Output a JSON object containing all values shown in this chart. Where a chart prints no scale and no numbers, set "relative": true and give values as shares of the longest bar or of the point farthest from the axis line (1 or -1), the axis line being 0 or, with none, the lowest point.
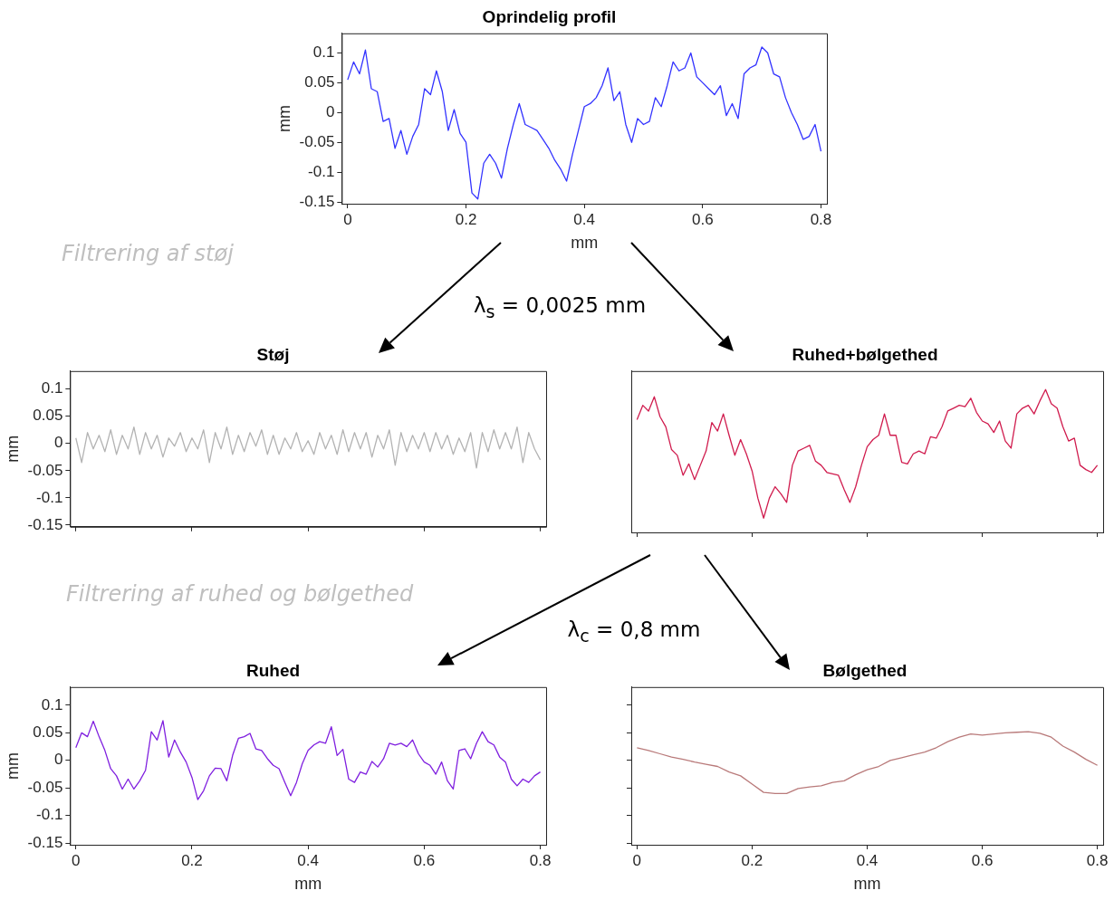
{
  "chart_data": [
    {
      "type": "line",
      "title": "Oprindelig profil",
      "xlabel": "mm",
      "ylabel": "mm",
      "color": "#3333ff",
      "xlim": [
        -0.01,
        0.81
      ],
      "xticks": [
        0,
        0.2,
        0.4,
        0.6,
        0.8
      ],
      "ylim": [
        -0.153,
        0.133
      ],
      "yticks": [
        -0.15,
        -0.1,
        -0.05,
        0,
        0.05,
        0.1
      ],
      "annotations": [
        "Filtrering af støj",
        "λ$_{s}$ = 0,0025 mm"
      ],
      "x": [
        0,
        0.01,
        0.02,
        0.03,
        0.04,
        0.05,
        0.06,
        0.07,
        0.08,
        0.09,
        0.1,
        0.11,
        0.12,
        0.13,
        0.14,
        0.15,
        0.16,
        0.17,
        0.18,
        0.19,
        0.2,
        0.21,
        0.22,
        0.23,
        0.24,
        0.25,
        0.26,
        0.27,
        0.28,
        0.29,
        0.3,
        0.31,
        0.32,
        0.33,
        0.34,
        0.35,
        0.36,
        0.37,
        0.38,
        0.39,
        0.4,
        0.41,
        0.42,
        0.43,
        0.44,
        0.45,
        0.46,
        0.47,
        0.48,
        0.49,
        0.5,
        0.51,
        0.52,
        0.53,
        0.54,
        0.55,
        0.56,
        0.57,
        0.58,
        0.59,
        0.6,
        0.61,
        0.62,
        0.63,
        0.64,
        0.65,
        0.66,
        0.67,
        0.68,
        0.69,
        0.7,
        0.71,
        0.72,
        0.73,
        0.74,
        0.75,
        0.76,
        0.77,
        0.78,
        0.79,
        0.8
      ],
      "values": [
        0.055,
        0.085,
        0.065,
        0.105,
        0.04,
        0.035,
        -0.015,
        -0.01,
        -0.06,
        -0.03,
        -0.07,
        -0.04,
        -0.02,
        0.04,
        0.03,
        0.07,
        0.035,
        -0.03,
        0.005,
        -0.035,
        -0.05,
        -0.135,
        -0.145,
        -0.085,
        -0.07,
        -0.085,
        -0.11,
        -0.06,
        -0.02,
        0.015,
        -0.02,
        -0.025,
        -0.03,
        -0.045,
        -0.06,
        -0.08,
        -0.095,
        -0.115,
        -0.07,
        -0.03,
        0.01,
        0.015,
        0.025,
        0.045,
        0.075,
        0.02,
        0.035,
        -0.02,
        -0.05,
        -0.01,
        -0.02,
        -0.015,
        0.025,
        0.01,
        0.045,
        0.085,
        0.07,
        0.075,
        0.1,
        0.06,
        0.05,
        0.04,
        0.03,
        0.045,
        -0.005,
        0.015,
        -0.01,
        0.065,
        0.075,
        0.08,
        0.11,
        0.1,
        0.065,
        0.06,
        0.025,
        0,
        -0.02,
        -0.045,
        -0.04,
        -0.02,
        -0.065
      ]
    },
    {
      "type": "line",
      "title": "Støj",
      "ylabel": "mm",
      "color": "#b3b3b3",
      "tick_labels": "y",
      "xlim": [
        -0.01,
        0.81
      ],
      "xticks": [
        0,
        0.2,
        0.4,
        0.6,
        0.8
      ],
      "ylim": [
        -0.153,
        0.133
      ],
      "yticks": [
        -0.15,
        -0.1,
        -0.05,
        0,
        0.05,
        0.1
      ],
      "x": [
        0,
        0.01,
        0.02,
        0.03,
        0.04,
        0.05,
        0.06,
        0.07,
        0.08,
        0.09,
        0.1,
        0.11,
        0.12,
        0.13,
        0.14,
        0.15,
        0.16,
        0.17,
        0.18,
        0.19,
        0.2,
        0.21,
        0.22,
        0.23,
        0.24,
        0.25,
        0.26,
        0.27,
        0.28,
        0.29,
        0.3,
        0.31,
        0.32,
        0.33,
        0.34,
        0.35,
        0.36,
        0.37,
        0.38,
        0.39,
        0.4,
        0.41,
        0.42,
        0.43,
        0.44,
        0.45,
        0.46,
        0.47,
        0.48,
        0.49,
        0.5,
        0.51,
        0.52,
        0.53,
        0.54,
        0.55,
        0.56,
        0.57,
        0.58,
        0.59,
        0.6,
        0.61,
        0.62,
        0.63,
        0.64,
        0.65,
        0.66,
        0.67,
        0.68,
        0.69,
        0.7,
        0.71,
        0.72,
        0.73,
        0.74,
        0.75,
        0.76,
        0.77,
        0.78,
        0.79,
        0.8
      ],
      "values": [
        0.01,
        -0.035,
        0.02,
        -0.01,
        0.015,
        -0.015,
        0.025,
        -0.02,
        0.015,
        -0.01,
        0.03,
        -0.02,
        0.02,
        -0.01,
        0.015,
        -0.025,
        0.01,
        -0.005,
        0.02,
        -0.015,
        0.01,
        -0.01,
        0.025,
        -0.035,
        0.02,
        -0.01,
        0.03,
        -0.02,
        0.015,
        -0.015,
        0.02,
        -0.005,
        0.025,
        -0.02,
        0.015,
        -0.02,
        0.01,
        -0.01,
        0.02,
        -0.015,
        0.005,
        -0.02,
        0.02,
        -0.01,
        0.015,
        -0.02,
        0.025,
        -0.015,
        0.02,
        -0.01,
        0.02,
        -0.025,
        0.015,
        -0.01,
        0.025,
        -0.04,
        0.02,
        -0.015,
        0.015,
        -0.01,
        0.02,
        -0.015,
        0.02,
        -0.01,
        0.015,
        -0.02,
        0.01,
        -0.015,
        0.02,
        -0.045,
        0.02,
        -0.015,
        0.025,
        -0.01,
        0.02,
        -0.01,
        0.03,
        -0.035,
        0.02,
        -0.01,
        -0.03
      ]
    },
    {
      "type": "line",
      "title": "Ruhed+bølgethed",
      "color": "#d01c4e",
      "relative": true,
      "tick_labels": false,
      "xlim": [
        -0.01,
        0.81
      ],
      "xticks": [
        0,
        0.2,
        0.4,
        0.6,
        0.8
      ],
      "annotations": [
        "Filtrering af ruhed og bølgethed",
        "λ$_{c}$ = 0,8 mm"
      ],
      "x": [
        0,
        0.01,
        0.02,
        0.03,
        0.04,
        0.05,
        0.06,
        0.07,
        0.08,
        0.09,
        0.1,
        0.11,
        0.12,
        0.13,
        0.14,
        0.15,
        0.16,
        0.17,
        0.18,
        0.19,
        0.2,
        0.21,
        0.22,
        0.23,
        0.24,
        0.25,
        0.26,
        0.27,
        0.28,
        0.29,
        0.3,
        0.31,
        0.32,
        0.33,
        0.34,
        0.35,
        0.36,
        0.37,
        0.38,
        0.39,
        0.4,
        0.41,
        0.42,
        0.43,
        0.44,
        0.45,
        0.46,
        0.47,
        0.48,
        0.49,
        0.5,
        0.51,
        0.52,
        0.53,
        0.54,
        0.55,
        0.56,
        0.57,
        0.58,
        0.59,
        0.6,
        0.61,
        0.62,
        0.63,
        0.64,
        0.65,
        0.66,
        0.67,
        0.68,
        0.69,
        0.7,
        0.71,
        0.72,
        0.73,
        0.74,
        0.75,
        0.76,
        0.77,
        0.78,
        0.79,
        0.8
      ],
      "values": [
        0.79,
        0.89,
        0.85,
        0.95,
        0.81,
        0.74,
        0.58,
        0.54,
        0.4,
        0.48,
        0.37,
        0.47,
        0.57,
        0.77,
        0.71,
        0.83,
        0.68,
        0.54,
        0.65,
        0.55,
        0.43,
        0.24,
        0.1,
        0.24,
        0.32,
        0.27,
        0.21,
        0.47,
        0.57,
        0.59,
        0.61,
        0.5,
        0.47,
        0.42,
        0.41,
        0.4,
        0.3,
        0.21,
        0.32,
        0.47,
        0.6,
        0.65,
        0.68,
        0.83,
        0.68,
        0.68,
        0.49,
        0.48,
        0.55,
        0.57,
        0.55,
        0.67,
        0.66,
        0.74,
        0.85,
        0.87,
        0.89,
        0.88,
        0.94,
        0.84,
        0.78,
        0.76,
        0.7,
        0.78,
        0.64,
        0.59,
        0.83,
        0.87,
        0.89,
        0.83,
        0.92,
        1,
        0.9,
        0.87,
        0.74,
        0.64,
        0.66,
        0.47,
        0.44,
        0.42,
        0.47
      ]
    },
    {
      "type": "line",
      "title": "Ruhed",
      "xlabel": "mm",
      "ylabel": "mm",
      "color": "#7f1fdf",
      "xlim": [
        -0.01,
        0.81
      ],
      "xticks": [
        0,
        0.2,
        0.4,
        0.6,
        0.8
      ],
      "ylim": [
        -0.153,
        0.133
      ],
      "yticks": [
        -0.15,
        -0.1,
        -0.05,
        0,
        0.05,
        0.1
      ],
      "x": [
        0,
        0.01,
        0.02,
        0.03,
        0.04,
        0.05,
        0.06,
        0.07,
        0.08,
        0.09,
        0.1,
        0.11,
        0.12,
        0.13,
        0.14,
        0.15,
        0.16,
        0.17,
        0.18,
        0.19,
        0.2,
        0.21,
        0.22,
        0.23,
        0.24,
        0.25,
        0.26,
        0.27,
        0.28,
        0.29,
        0.3,
        0.31,
        0.32,
        0.33,
        0.34,
        0.35,
        0.36,
        0.37,
        0.38,
        0.39,
        0.4,
        0.41,
        0.42,
        0.43,
        0.44,
        0.45,
        0.46,
        0.47,
        0.48,
        0.49,
        0.5,
        0.51,
        0.52,
        0.53,
        0.54,
        0.55,
        0.56,
        0.57,
        0.58,
        0.59,
        0.6,
        0.61,
        0.62,
        0.63,
        0.64,
        0.65,
        0.66,
        0.67,
        0.68,
        0.69,
        0.7,
        0.71,
        0.72,
        0.73,
        0.74,
        0.75,
        0.76,
        0.77,
        0.78,
        0.79,
        0.8
      ],
      "values": [
        0.023,
        0.05,
        0.043,
        0.071,
        0.043,
        0.018,
        -0.015,
        -0.028,
        -0.052,
        -0.034,
        -0.052,
        -0.037,
        -0.018,
        0.052,
        0.037,
        0.072,
        0.006,
        0.037,
        0.015,
        -0.003,
        -0.031,
        -0.071,
        -0.055,
        -0.028,
        -0.014,
        -0.015,
        -0.037,
        0.009,
        0.04,
        0.043,
        0.049,
        0.021,
        0.018,
        0.003,
        -0.009,
        -0.015,
        -0.04,
        -0.064,
        -0.04,
        -0.006,
        0.018,
        0.028,
        0.034,
        0.031,
        0.061,
        0.009,
        0.02,
        -0.034,
        -0.04,
        -0.021,
        -0.025,
        -0.002,
        -0.012,
        0.003,
        0.031,
        0.028,
        0.031,
        0.025,
        0.037,
        0.012,
        -0.003,
        -0.009,
        -0.025,
        -0.003,
        -0.037,
        -0.052,
        0.018,
        0.021,
        0.003,
        0.031,
        0.052,
        0.034,
        0.028,
        0.006,
        -0.003,
        -0.034,
        -0.046,
        -0.034,
        -0.04,
        -0.028,
        -0.021
      ]
    },
    {
      "type": "line",
      "title": "Bølgethed",
      "xlabel": "mm",
      "color": "#b97a7a",
      "tick_labels": "x",
      "xlim": [
        -0.01,
        0.81
      ],
      "xticks": [
        0,
        0.2,
        0.4,
        0.6,
        0.8
      ],
      "ylim": [
        -0.153,
        0.133
      ],
      "yticks": [
        -0.15,
        -0.1,
        -0.05,
        0,
        0.05,
        0.1
      ],
      "x": [
        0,
        0.02,
        0.04,
        0.06,
        0.08,
        0.1,
        0.12,
        0.14,
        0.16,
        0.18,
        0.2,
        0.22,
        0.24,
        0.26,
        0.28,
        0.3,
        0.32,
        0.34,
        0.36,
        0.38,
        0.4,
        0.42,
        0.44,
        0.46,
        0.48,
        0.5,
        0.52,
        0.54,
        0.56,
        0.58,
        0.6,
        0.62,
        0.64,
        0.66,
        0.68,
        0.7,
        0.72,
        0.74,
        0.76,
        0.78,
        0.8
      ],
      "values": [
        0.023,
        0.018,
        0.012,
        0.006,
        0.002,
        -0.003,
        -0.007,
        -0.011,
        -0.021,
        -0.028,
        -0.043,
        -0.058,
        -0.06,
        -0.06,
        -0.051,
        -0.048,
        -0.046,
        -0.04,
        -0.037,
        -0.026,
        -0.017,
        -0.011,
        0,
        0.005,
        0.01,
        0.015,
        0.023,
        0.034,
        0.042,
        0.048,
        0.046,
        0.048,
        0.05,
        0.051,
        0.052,
        0.049,
        0.042,
        0.026,
        0.015,
        0.002,
        -0.009
      ]
    }
  ]
}
